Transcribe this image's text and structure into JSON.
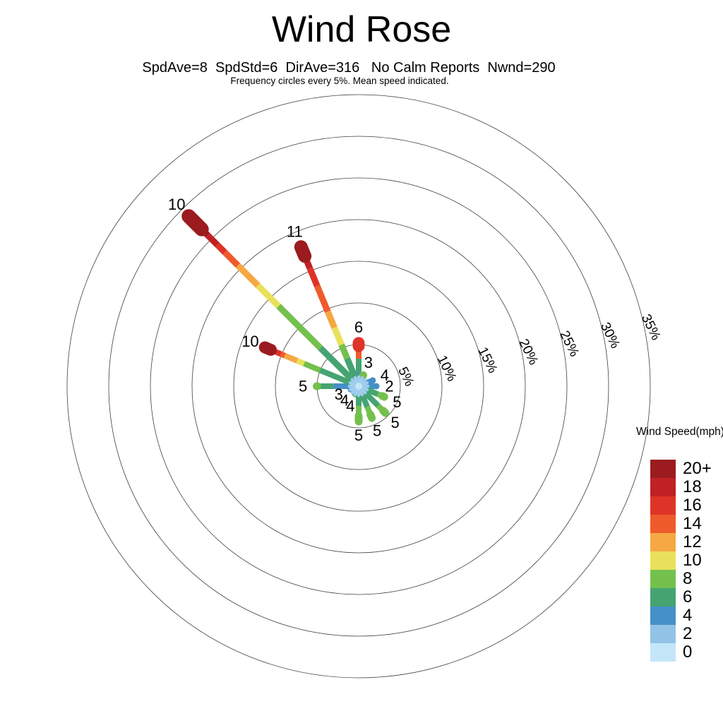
{
  "title": "Wind Rose",
  "subtitle": "SpdAve=8  SpdStd=6  DirAve=316   No Calm Reports  Nwnd=290",
  "note": "Frequency circles every 5%. Mean speed indicated.",
  "legend": {
    "title": "Wind Speed(mph)",
    "entries": [
      {
        "label": "20+",
        "color": "#9B1B1E"
      },
      {
        "label": "18",
        "color": "#C02125"
      },
      {
        "label": "16",
        "color": "#DE3428"
      },
      {
        "label": "14",
        "color": "#EF5B2B"
      },
      {
        "label": "12",
        "color": "#F5A843"
      },
      {
        "label": "10",
        "color": "#E9E15B"
      },
      {
        "label": "8",
        "color": "#74C04D"
      },
      {
        "label": "6",
        "color": "#45A472"
      },
      {
        "label": "4",
        "color": "#4690C8"
      },
      {
        "label": "2",
        "color": "#92C3E6"
      },
      {
        "label": "0",
        "color": "#C4E6F8"
      }
    ]
  },
  "chart_data": {
    "type": "windrose-polar",
    "stats": {
      "SpdAve": 8,
      "SpdStd": 6,
      "DirAve": 316,
      "calm": "No Calm Reports",
      "Nwnd": 290
    },
    "frequency_circle_step_pct": 5,
    "circle_labels": [
      "5%",
      "10%",
      "15%",
      "20%",
      "25%",
      "30%",
      "35%"
    ],
    "max_pct": 35,
    "speed_bin_colors": {
      "20+": "#9B1B1E",
      "18": "#C02125",
      "16": "#DE3428",
      "14": "#EF5B2B",
      "12": "#F5A843",
      "10": "#E9E15B",
      "8": "#74C04D",
      "6": "#45A472",
      "4": "#4690C8",
      "2": "#92C3E6",
      "0": "#C4E6F8"
    },
    "center_burst": {
      "color": "#9FCDEE",
      "inner_color": "#C4E6F8"
    },
    "directions": [
      {
        "dir": "N",
        "angle": 0,
        "total_pct": 5.9,
        "mean_speed": "6",
        "segments": [
          [
            "4",
            1.7
          ],
          [
            "6",
            3.3
          ],
          [
            "14",
            4.2
          ],
          [
            "16",
            5.9
          ]
        ],
        "cap": [
          1.8,
          17
        ],
        "width": 8
      },
      {
        "dir": "NNE",
        "angle": 22.5,
        "total_pct": 1.9,
        "mean_speed": "3",
        "segments": [
          [
            "4",
            0.9
          ],
          [
            "8",
            1.9
          ]
        ],
        "cap": [
          1.0,
          11
        ],
        "width": 8
      },
      {
        "dir": "ENE",
        "angle": 67.5,
        "total_pct": 2.2,
        "mean_speed": "4",
        "segments": [
          [
            "4",
            2.2
          ]
        ],
        "cap": [
          0.7,
          9
        ],
        "width": 8
      },
      {
        "dir": "E",
        "angle": 90,
        "total_pct": 2.5,
        "mean_speed": "2",
        "segments": [
          [
            "4",
            2.5
          ]
        ],
        "cap": [
          0.7,
          9
        ],
        "width": 8
      },
      {
        "dir": "ESE",
        "angle": 112.5,
        "total_pct": 3.8,
        "mean_speed": "5",
        "segments": [
          [
            "6",
            2.5
          ],
          [
            "8",
            3.8
          ]
        ],
        "cap": [
          1.2,
          11
        ],
        "width": 8
      },
      {
        "dir": "SE",
        "angle": 135,
        "total_pct": 5.0,
        "mean_speed": "5",
        "segments": [
          [
            "6",
            3.3
          ],
          [
            "8",
            5.0
          ]
        ],
        "cap": [
          1.3,
          11
        ],
        "width": 8
      },
      {
        "dir": "SSE",
        "angle": 157.5,
        "total_pct": 4.6,
        "mean_speed": "5",
        "segments": [
          [
            "6",
            2.7
          ],
          [
            "8",
            4.6
          ]
        ],
        "cap": [
          1.4,
          11
        ],
        "width": 8
      },
      {
        "dir": "S",
        "angle": 180,
        "total_pct": 4.7,
        "mean_speed": "5",
        "segments": [
          [
            "6",
            2.4
          ],
          [
            "8",
            4.7
          ]
        ],
        "cap": [
          1.6,
          11
        ],
        "width": 8
      },
      {
        "dir": "SSW",
        "angle": 202.5,
        "total_pct": 1.4,
        "mean_speed": "4",
        "segments": [
          [
            "6",
            1.4
          ]
        ],
        "cap": [
          0.7,
          9
        ],
        "width": 7
      },
      {
        "dir": "SW",
        "angle": 225,
        "total_pct": 1.2,
        "mean_speed": "4",
        "segments": [
          [
            "4",
            1.2
          ]
        ],
        "cap": [
          0.6,
          8
        ],
        "width": 7
      },
      {
        "dir": "WSW",
        "angle": 247.5,
        "total_pct": 1.4,
        "mean_speed": "3",
        "segments": [
          [
            "4",
            1.4
          ]
        ],
        "cap": [
          0.6,
          8
        ],
        "width": 7
      },
      {
        "dir": "W",
        "angle": 270,
        "total_pct": 5.5,
        "mean_speed": "5",
        "segments": [
          [
            "4",
            3.0
          ],
          [
            "6",
            4.7
          ],
          [
            "8",
            5.5
          ]
        ],
        "cap": [
          1.0,
          11
        ],
        "width": 8
      },
      {
        "dir": "WNW",
        "angle": 292.5,
        "total_pct": 12.9,
        "mean_speed": "10",
        "segments": [
          [
            "6",
            5.0
          ],
          [
            "8",
            7.1
          ],
          [
            "10",
            8.0
          ],
          [
            "12",
            9.6
          ],
          [
            "14",
            10.1
          ],
          [
            "16",
            10.9
          ],
          [
            "18",
            11.5
          ],
          [
            "20+",
            12.9
          ]
        ],
        "cap": [
          2.2,
          17
        ],
        "width": 8
      },
      {
        "dir": "NW",
        "angle": 315,
        "total_pct": 29.7,
        "mean_speed": "10",
        "segments": [
          [
            "6",
            6.5
          ],
          [
            "8",
            13.6
          ],
          [
            "10",
            17.1
          ],
          [
            "12",
            20.5
          ],
          [
            "14",
            22.7
          ],
          [
            "16",
            24.0
          ],
          [
            "18",
            25.6
          ],
          [
            "20+",
            29.7
          ]
        ],
        "cap": [
          3.9,
          20
        ],
        "width": 9
      },
      {
        "dir": "NNW",
        "angle": 337.5,
        "total_pct": 18.9,
        "mean_speed": "11",
        "segments": [
          [
            "6",
            3.6
          ],
          [
            "8",
            5.4
          ],
          [
            "10",
            7.6
          ],
          [
            "12",
            9.7
          ],
          [
            "14",
            13.0
          ],
          [
            "16",
            15.3
          ],
          [
            "18",
            17.5
          ],
          [
            "20+",
            18.9
          ]
        ],
        "cap": [
          2.8,
          19
        ],
        "width": 9
      }
    ]
  }
}
